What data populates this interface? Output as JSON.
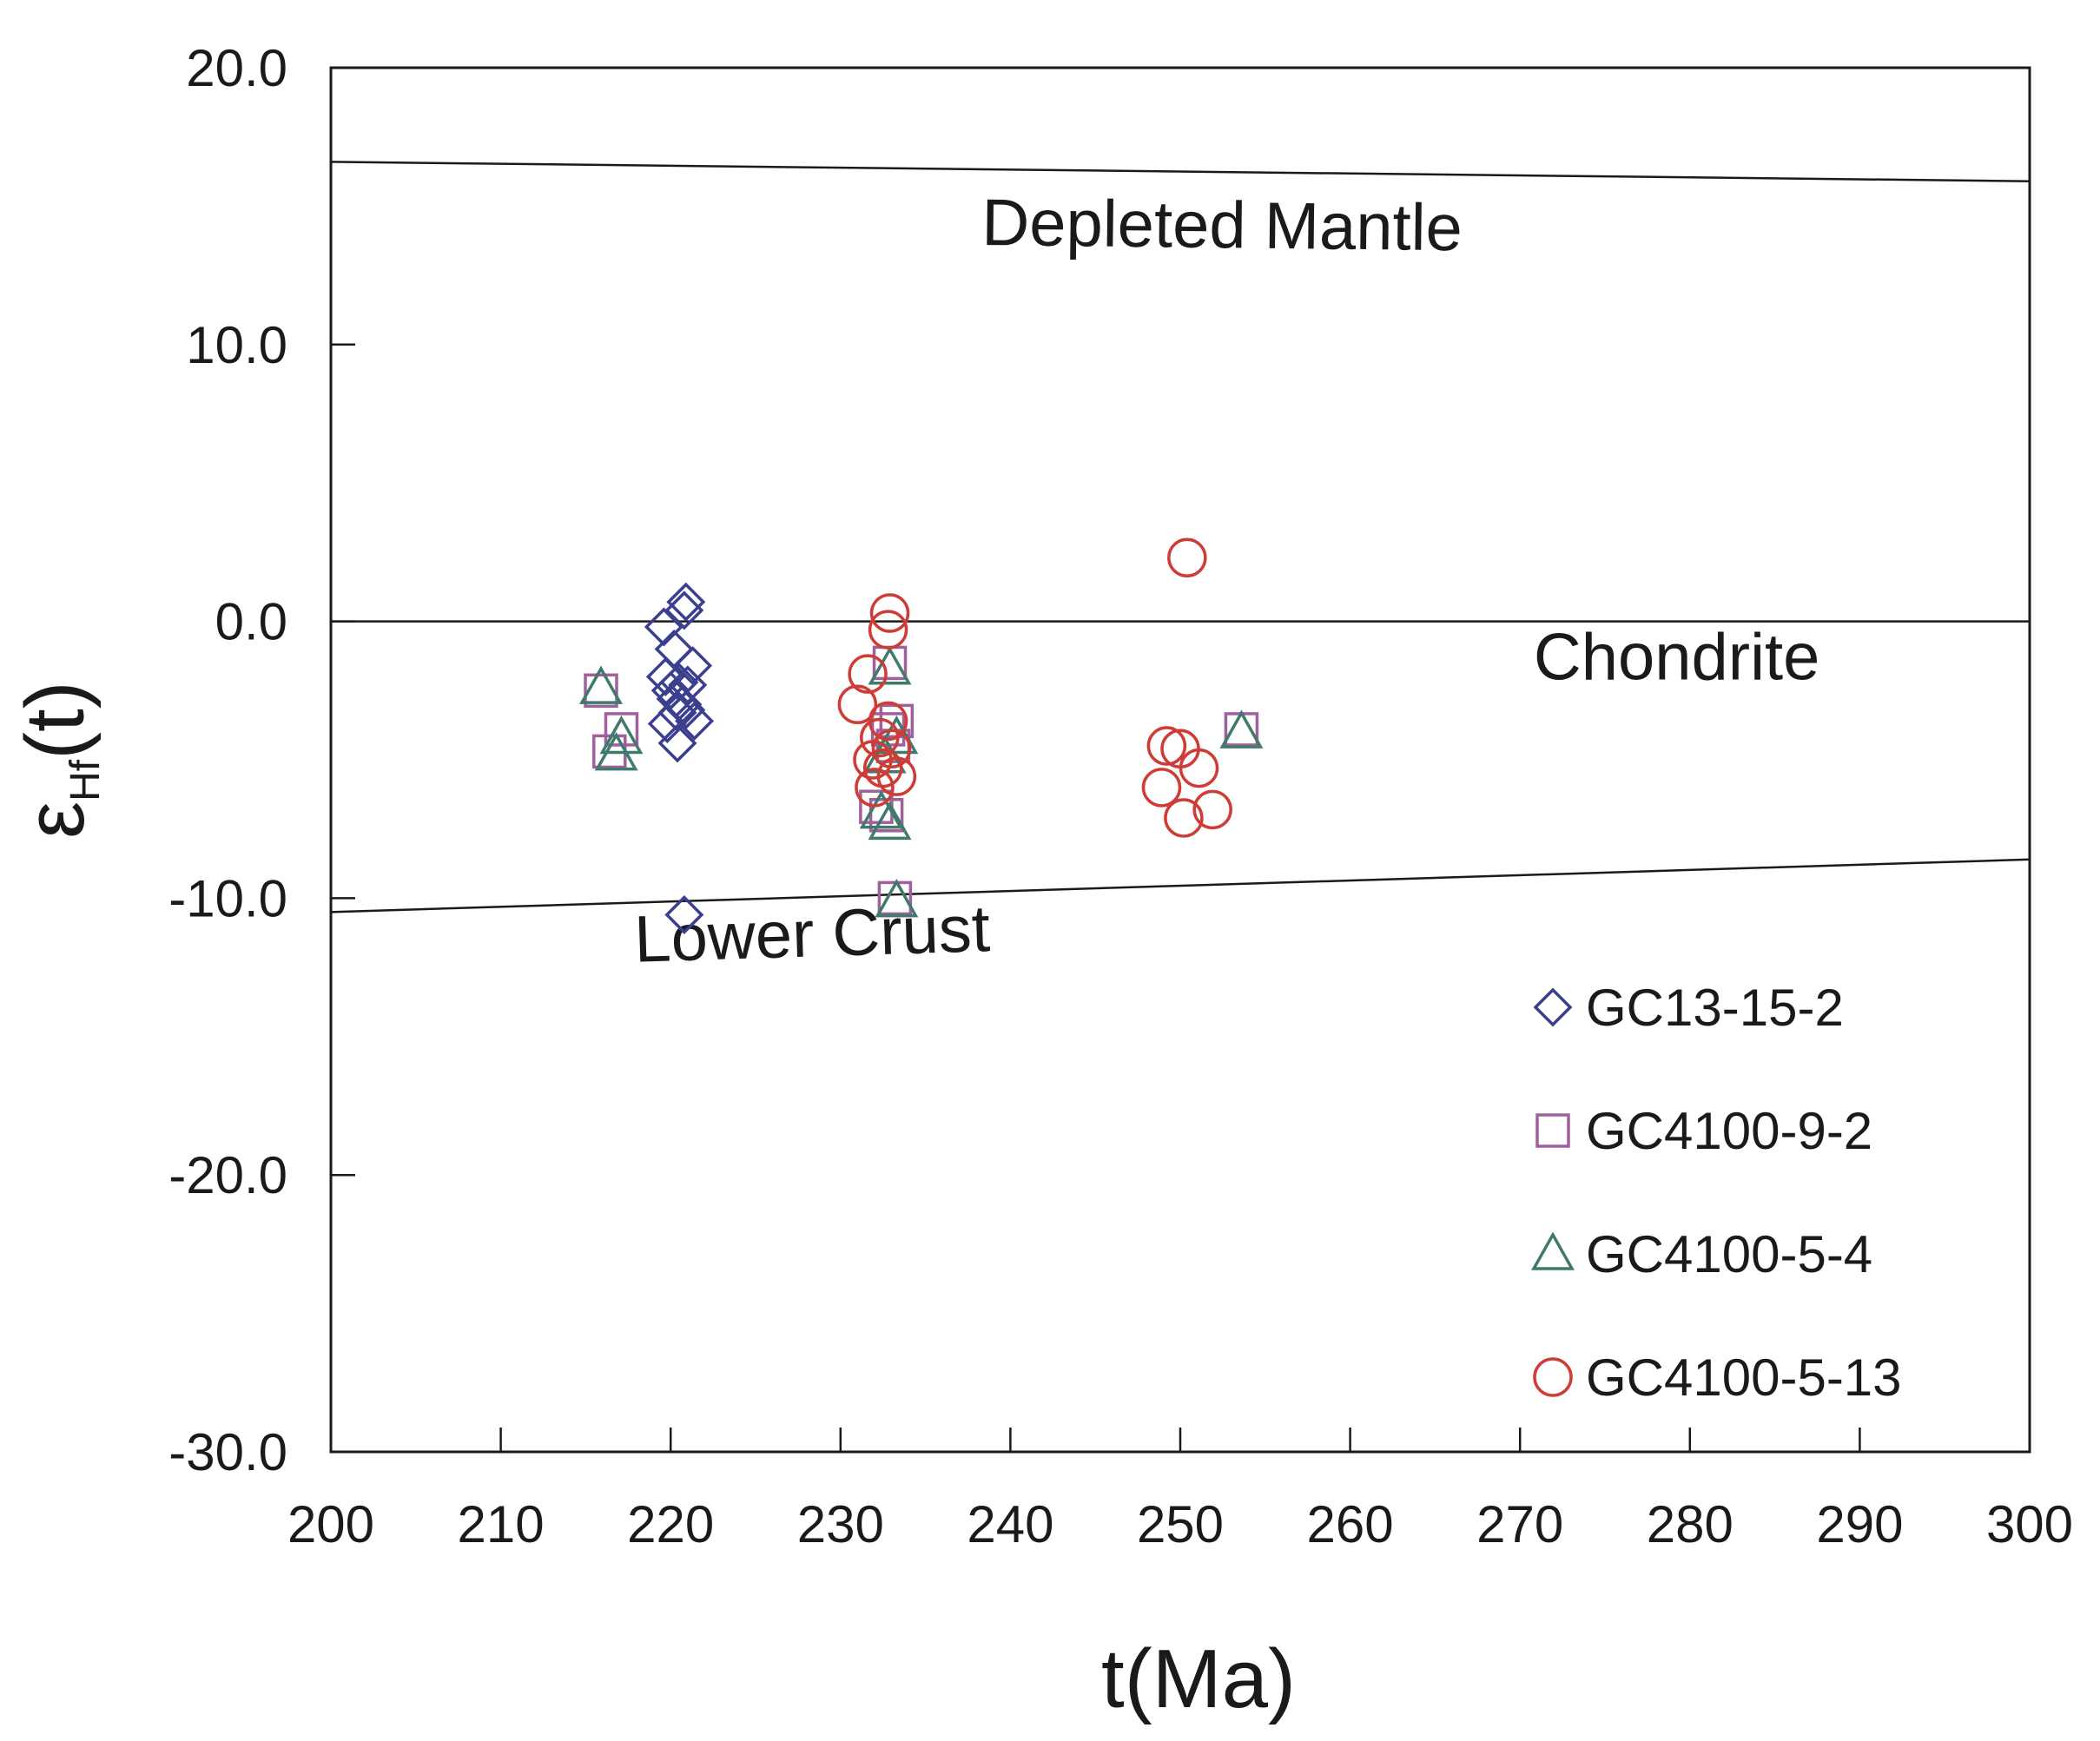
{
  "chart_data": {
    "type": "scatter",
    "title": "",
    "xlabel": "t(Ma)",
    "ylabel": {
      "main": "ε",
      "subscript": "Hf",
      "suffix": "(t)"
    },
    "xlim": [
      200,
      300
    ],
    "ylim": [
      -30,
      20
    ],
    "x_ticks": [
      "200",
      "210",
      "220",
      "230",
      "240",
      "250",
      "260",
      "270",
      "280",
      "290",
      "300"
    ],
    "y_ticks": [
      "20.0",
      "10.0",
      "0.0",
      "-10.0",
      "-20.0",
      "-30.0"
    ],
    "reference_lines": [
      {
        "name": "Depleted Mantle",
        "points": [
          [
            200,
            16.6
          ],
          [
            300,
            15.9
          ]
        ],
        "label_at": [
          238.3,
          13.6
        ]
      },
      {
        "name": "Chondrite",
        "points": [
          [
            200,
            0
          ],
          [
            300,
            0
          ]
        ],
        "label_at": [
          270.8,
          -2.1
        ]
      },
      {
        "name": "Lower Crust",
        "points": [
          [
            200,
            -10.5
          ],
          [
            300,
            -8.6
          ]
        ],
        "label_at": [
          217.9,
          -12.3
        ]
      }
    ],
    "legend_position": "bottom-right",
    "series": [
      {
        "name": "GC13-15-2",
        "marker": "diamond",
        "color": "#3b3f8f",
        "points": [
          [
            220.9,
            0.7
          ],
          [
            220.8,
            0.4
          ],
          [
            219.6,
            -0.2
          ],
          [
            220.2,
            -1.0
          ],
          [
            221.3,
            -1.6
          ],
          [
            219.7,
            -2.0
          ],
          [
            220.5,
            -2.2
          ],
          [
            220.0,
            -2.5
          ],
          [
            221.0,
            -2.3
          ],
          [
            220.3,
            -2.8
          ],
          [
            220.7,
            -3.0
          ],
          [
            220.9,
            -3.2
          ],
          [
            220.4,
            -3.3
          ],
          [
            221.4,
            -3.6
          ],
          [
            219.8,
            -3.7
          ],
          [
            220.4,
            -4.4
          ],
          [
            220.8,
            -10.6
          ]
        ]
      },
      {
        "name": "GC4100-9-2",
        "marker": "square",
        "color": "#a0609c",
        "points": [
          [
            215.9,
            -2.5
          ],
          [
            217.1,
            -3.9
          ],
          [
            216.4,
            -4.7
          ],
          [
            232.9,
            -1.5
          ],
          [
            233.3,
            -3.6
          ],
          [
            232.8,
            -3.9
          ],
          [
            233.1,
            -4.5
          ],
          [
            232.1,
            -6.7
          ],
          [
            232.7,
            -7.0
          ],
          [
            233.2,
            -10.0
          ],
          [
            253.6,
            -3.9
          ]
        ]
      },
      {
        "name": "GC4100-5-4",
        "marker": "triangle",
        "color": "#3f7a6c",
        "points": [
          [
            215.9,
            -2.4
          ],
          [
            217.1,
            -4.2
          ],
          [
            216.8,
            -4.8
          ],
          [
            232.9,
            -1.7
          ],
          [
            233.3,
            -4.2
          ],
          [
            232.6,
            -4.9
          ],
          [
            232.4,
            -6.9
          ],
          [
            232.9,
            -7.3
          ],
          [
            233.3,
            -10.1
          ],
          [
            253.6,
            -4.0
          ]
        ]
      },
      {
        "name": "GC4100-5-13",
        "marker": "circle",
        "color": "#cf3b35",
        "points": [
          [
            250.4,
            2.3
          ],
          [
            232.9,
            0.3
          ],
          [
            232.8,
            -0.3
          ],
          [
            231.6,
            -1.9
          ],
          [
            231.0,
            -3.0
          ],
          [
            232.8,
            -3.6
          ],
          [
            232.3,
            -4.2
          ],
          [
            233.0,
            -4.6
          ],
          [
            231.9,
            -5.0
          ],
          [
            232.5,
            -5.3
          ],
          [
            233.3,
            -5.6
          ],
          [
            232.0,
            -6.0
          ],
          [
            249.2,
            -4.5
          ],
          [
            250.0,
            -4.6
          ],
          [
            251.1,
            -5.3
          ],
          [
            248.9,
            -6.0
          ],
          [
            250.2,
            -7.1
          ],
          [
            251.9,
            -6.8
          ]
        ]
      }
    ]
  }
}
